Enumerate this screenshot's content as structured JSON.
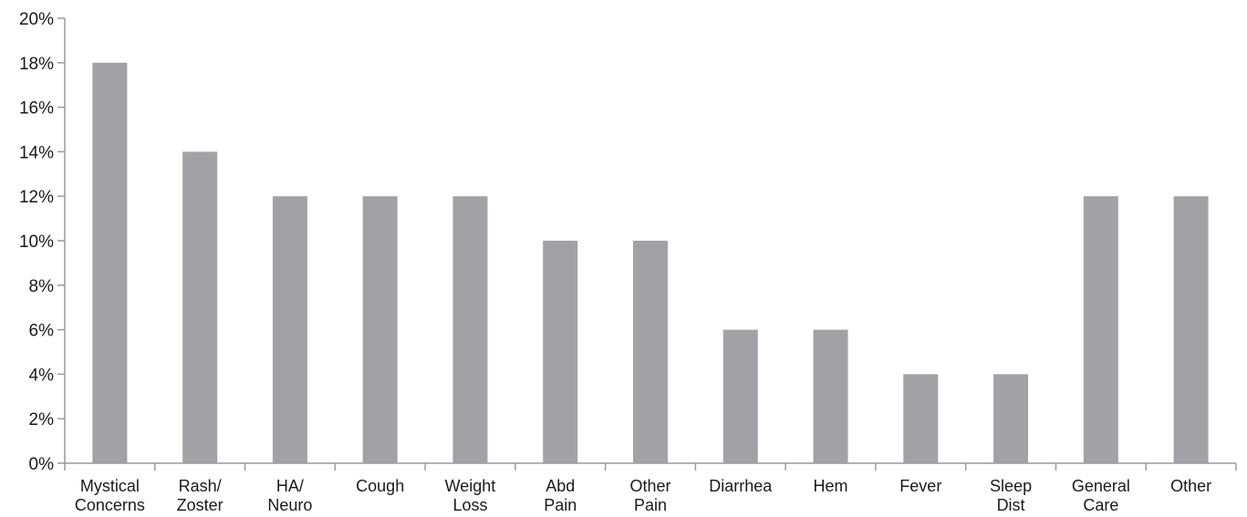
{
  "chart_data": {
    "type": "bar",
    "categories": [
      [
        "Mystical",
        "Concerns"
      ],
      [
        "Rash/",
        "Zoster"
      ],
      [
        "HA/",
        "Neuro"
      ],
      [
        "Cough"
      ],
      [
        "Weight",
        "Loss"
      ],
      [
        "Abd",
        "Pain"
      ],
      [
        "Other",
        "Pain"
      ],
      [
        "Diarrhea"
      ],
      [
        "Hem"
      ],
      [
        "Fever"
      ],
      [
        "Sleep",
        "Dist"
      ],
      [
        "General",
        "Care"
      ],
      [
        "Other"
      ]
    ],
    "values": [
      18,
      14,
      12,
      12,
      12,
      10,
      10,
      6,
      6,
      4,
      4,
      12,
      12
    ],
    "ylim": [
      0,
      20
    ],
    "yticks": [
      0,
      2,
      4,
      6,
      8,
      10,
      12,
      14,
      16,
      18,
      20
    ],
    "ytick_suffix": "%",
    "bar_color": "#a2a2a6",
    "axis_color": "#9a9a9a",
    "grid": false
  }
}
